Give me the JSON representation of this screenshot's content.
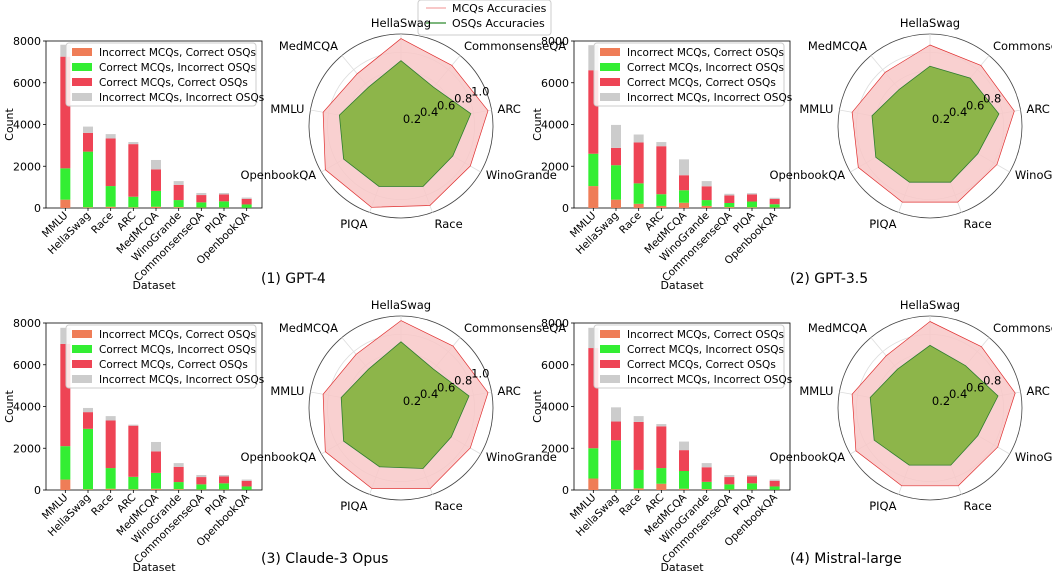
{
  "figure": {
    "top_legend": [
      {
        "label": "MCQs Accuracies",
        "color": "#f4a6a6"
      },
      {
        "label": "OSQs Accuracies",
        "color": "#2e8b2e"
      }
    ]
  },
  "colors": {
    "incorrect_mcq_correct_osq": "#ef7d57",
    "correct_mcq_incorrect_osq": "#33ee33",
    "correct_mcq_correct_osq": "#ee4455",
    "incorrect_mcq_incorrect_osq": "#cccccc",
    "mcq_fill": "#f8c8c8",
    "mcq_line": "#e03030",
    "osq_fill": "#8db54a",
    "osq_line": "#2e7d2e"
  },
  "chart_data": [
    {
      "type": "bar",
      "panel": "(1) GPT-4",
      "xlabel": "Dataset",
      "ylabel": "Count",
      "ylim": [
        0,
        8000
      ],
      "yticks": [
        "0",
        "2000",
        "4000",
        "6000",
        "8000"
      ],
      "categories": [
        "MMLU",
        "HellaSwag",
        "Race",
        "ARC",
        "MedMCQA",
        "WinoGrande",
        "CommonsenseQA",
        "PIQA",
        "OpenbookQA"
      ],
      "legend": [
        "Incorrect MCQs, Correct OSQs",
        "Correct MCQs, Incorrect OSQs",
        "Correct MCQs, Correct OSQs",
        "Incorrect MCQs, Incorrect OSQs"
      ],
      "series": [
        {
          "name": "Incorrect MCQs, Correct OSQs",
          "values": [
            400,
            30,
            60,
            30,
            60,
            40,
            20,
            20,
            10
          ]
        },
        {
          "name": "Correct MCQs, Incorrect OSQs",
          "values": [
            1500,
            2670,
            990,
            510,
            760,
            340,
            250,
            300,
            160
          ]
        },
        {
          "name": "Correct MCQs, Correct OSQs",
          "values": [
            5350,
            900,
            2280,
            2520,
            1030,
            730,
            350,
            330,
            270
          ]
        },
        {
          "name": "Incorrect MCQs, Incorrect OSQs",
          "values": [
            570,
            300,
            210,
            100,
            450,
            180,
            100,
            70,
            60
          ]
        }
      ]
    },
    {
      "type": "radar",
      "panel": "(1) GPT-4",
      "axes": [
        "HellaSwag",
        "CommonsenseQA",
        "ARC",
        "WinoGrande",
        "Race",
        "PIQA",
        "OpenbookQA",
        "MMLU",
        "MedMCQA"
      ],
      "rticks": [
        "0.2",
        "0.4",
        "0.6",
        "0.8",
        "1.0"
      ],
      "series": [
        {
          "name": "MCQs Accuracies",
          "values": [
            0.95,
            0.86,
            0.96,
            0.87,
            0.92,
            0.94,
            0.95,
            0.86,
            0.74
          ]
        },
        {
          "name": "OSQs Accuracies",
          "values": [
            0.71,
            0.55,
            0.77,
            0.65,
            0.7,
            0.7,
            0.72,
            0.68,
            0.55
          ]
        }
      ]
    },
    {
      "type": "bar",
      "panel": "(2) GPT-3.5",
      "xlabel": "Dataset",
      "ylabel": "Count",
      "ylim": [
        0,
        8000
      ],
      "yticks": [
        "0",
        "2000",
        "4000",
        "6000",
        "8000"
      ],
      "categories": [
        "MMLU",
        "HellaSwag",
        "Race",
        "ARC",
        "MedMCQA",
        "WinoGrande",
        "CommonsenseQA",
        "PIQA",
        "OpenbookQA"
      ],
      "legend": [
        "Incorrect MCQs, Correct OSQs",
        "Correct MCQs, Incorrect OSQs",
        "Correct MCQs, Correct OSQs",
        "Incorrect MCQs, Incorrect OSQs"
      ],
      "series": [
        {
          "name": "Incorrect MCQs, Correct OSQs",
          "values": [
            1050,
            400,
            200,
            100,
            250,
            100,
            40,
            30,
            20
          ]
        },
        {
          "name": "Correct MCQs, Incorrect OSQs",
          "values": [
            1550,
            1650,
            980,
            560,
            600,
            280,
            200,
            280,
            160
          ]
        },
        {
          "name": "Correct MCQs, Correct OSQs",
          "values": [
            4000,
            830,
            1960,
            2300,
            720,
            660,
            360,
            340,
            250
          ]
        },
        {
          "name": "Incorrect MCQs, Incorrect OSQs",
          "values": [
            1200,
            1100,
            380,
            200,
            760,
            250,
            80,
            60,
            60
          ]
        }
      ]
    },
    {
      "type": "radar",
      "panel": "(2) GPT-3.5",
      "axes": [
        "HellaSwag",
        "CommonsenseQA",
        "ARC",
        "WinoGrande",
        "Race",
        "PIQA",
        "OpenbookQA",
        "MMLU",
        "MedMCQA"
      ],
      "rticks": [
        "0.2",
        "0.4",
        "0.6",
        "0.8"
      ],
      "series": [
        {
          "name": "MCQs Accuracies",
          "values": [
            0.88,
            0.86,
            0.93,
            0.84,
            0.88,
            0.88,
            0.9,
            0.86,
            0.76
          ]
        },
        {
          "name": "OSQs Accuracies",
          "values": [
            0.65,
            0.68,
            0.76,
            0.6,
            0.65,
            0.65,
            0.68,
            0.64,
            0.52
          ]
        }
      ]
    },
    {
      "type": "bar",
      "panel": "(3) Claude-3 Opus",
      "xlabel": "Dataset",
      "ylabel": "Count",
      "ylim": [
        0,
        8000
      ],
      "yticks": [
        "0",
        "2000",
        "4000",
        "6000",
        "8000"
      ],
      "categories": [
        "MMLU",
        "HellaSwag",
        "Race",
        "ARC",
        "MedMCQA",
        "WinoGrande",
        "CommonsenseQA",
        "PIQA",
        "OpenbookQA"
      ],
      "legend": [
        "Incorrect MCQs, Correct OSQs",
        "Correct MCQs, Incorrect OSQs",
        "Correct MCQs, Correct OSQs",
        "Incorrect MCQs, Incorrect OSQs"
      ],
      "series": [
        {
          "name": "Incorrect MCQs, Correct OSQs",
          "values": [
            500,
            30,
            60,
            30,
            60,
            40,
            20,
            20,
            10
          ]
        },
        {
          "name": "Correct MCQs, Incorrect OSQs",
          "values": [
            1600,
            2900,
            990,
            600,
            760,
            340,
            250,
            300,
            160
          ]
        },
        {
          "name": "Correct MCQs, Correct OSQs",
          "values": [
            4900,
            800,
            2280,
            2450,
            1030,
            730,
            350,
            330,
            270
          ]
        },
        {
          "name": "Incorrect MCQs, Incorrect OSQs",
          "values": [
            770,
            200,
            210,
            50,
            450,
            180,
            100,
            70,
            60
          ]
        }
      ]
    },
    {
      "type": "radar",
      "panel": "(3) Claude-3 Opus",
      "axes": [
        "HellaSwag",
        "CommonsenseQA",
        "ARC",
        "WinoGrande",
        "Race",
        "PIQA",
        "OpenbookQA",
        "MMLU",
        "MedMCQA"
      ],
      "rticks": [
        "0.2",
        "0.4",
        "0.6",
        "0.8",
        "1.0"
      ],
      "series": [
        {
          "name": "MCQs Accuracies",
          "values": [
            0.95,
            0.88,
            0.96,
            0.87,
            0.93,
            0.93,
            0.95,
            0.86,
            0.76
          ]
        },
        {
          "name": "OSQs Accuracies",
          "values": [
            0.72,
            0.55,
            0.75,
            0.63,
            0.7,
            0.68,
            0.72,
            0.66,
            0.55
          ]
        }
      ]
    },
    {
      "type": "bar",
      "panel": "(4) Mistral-large",
      "xlabel": "Dataset",
      "ylabel": "Count",
      "ylim": [
        0,
        8000
      ],
      "yticks": [
        "0",
        "2000",
        "4000",
        "6000",
        "8000"
      ],
      "categories": [
        "MMLU",
        "HellaSwag",
        "Race",
        "ARC",
        "MedMCQA",
        "WinoGrande",
        "CommonsenseQA",
        "PIQA",
        "OpenbookQA"
      ],
      "legend": [
        "Incorrect MCQs, Correct OSQs",
        "Correct MCQs, Incorrect OSQs",
        "Correct MCQs, Correct OSQs",
        "Incorrect MCQs, Incorrect OSQs"
      ],
      "series": [
        {
          "name": "Incorrect MCQs, Correct OSQs",
          "values": [
            550,
            30,
            80,
            300,
            60,
            40,
            20,
            20,
            10
          ]
        },
        {
          "name": "Correct MCQs, Incorrect OSQs",
          "values": [
            1450,
            2350,
            880,
            750,
            850,
            350,
            250,
            300,
            160
          ]
        },
        {
          "name": "Correct MCQs, Correct OSQs",
          "values": [
            4800,
            900,
            2300,
            2000,
            1000,
            700,
            350,
            330,
            270
          ]
        },
        {
          "name": "Incorrect MCQs, Incorrect OSQs",
          "values": [
            970,
            680,
            280,
            110,
            410,
            200,
            100,
            70,
            60
          ]
        }
      ]
    },
    {
      "type": "radar",
      "panel": "(4) Mistral-large",
      "axes": [
        "HellaSwag",
        "CommonsenseQA",
        "ARC",
        "WinoGrande",
        "Race",
        "PIQA",
        "OpenbookQA",
        "MMLU",
        "MedMCQA"
      ],
      "rticks": [
        "0.2",
        "0.4",
        "0.6",
        "0.8"
      ],
      "series": [
        {
          "name": "MCQs Accuracies",
          "values": [
            0.94,
            0.87,
            0.94,
            0.85,
            0.9,
            0.9,
            0.93,
            0.86,
            0.74
          ]
        },
        {
          "name": "OSQs Accuracies",
          "values": [
            0.68,
            0.6,
            0.75,
            0.6,
            0.66,
            0.66,
            0.7,
            0.66,
            0.55
          ]
        }
      ]
    }
  ]
}
